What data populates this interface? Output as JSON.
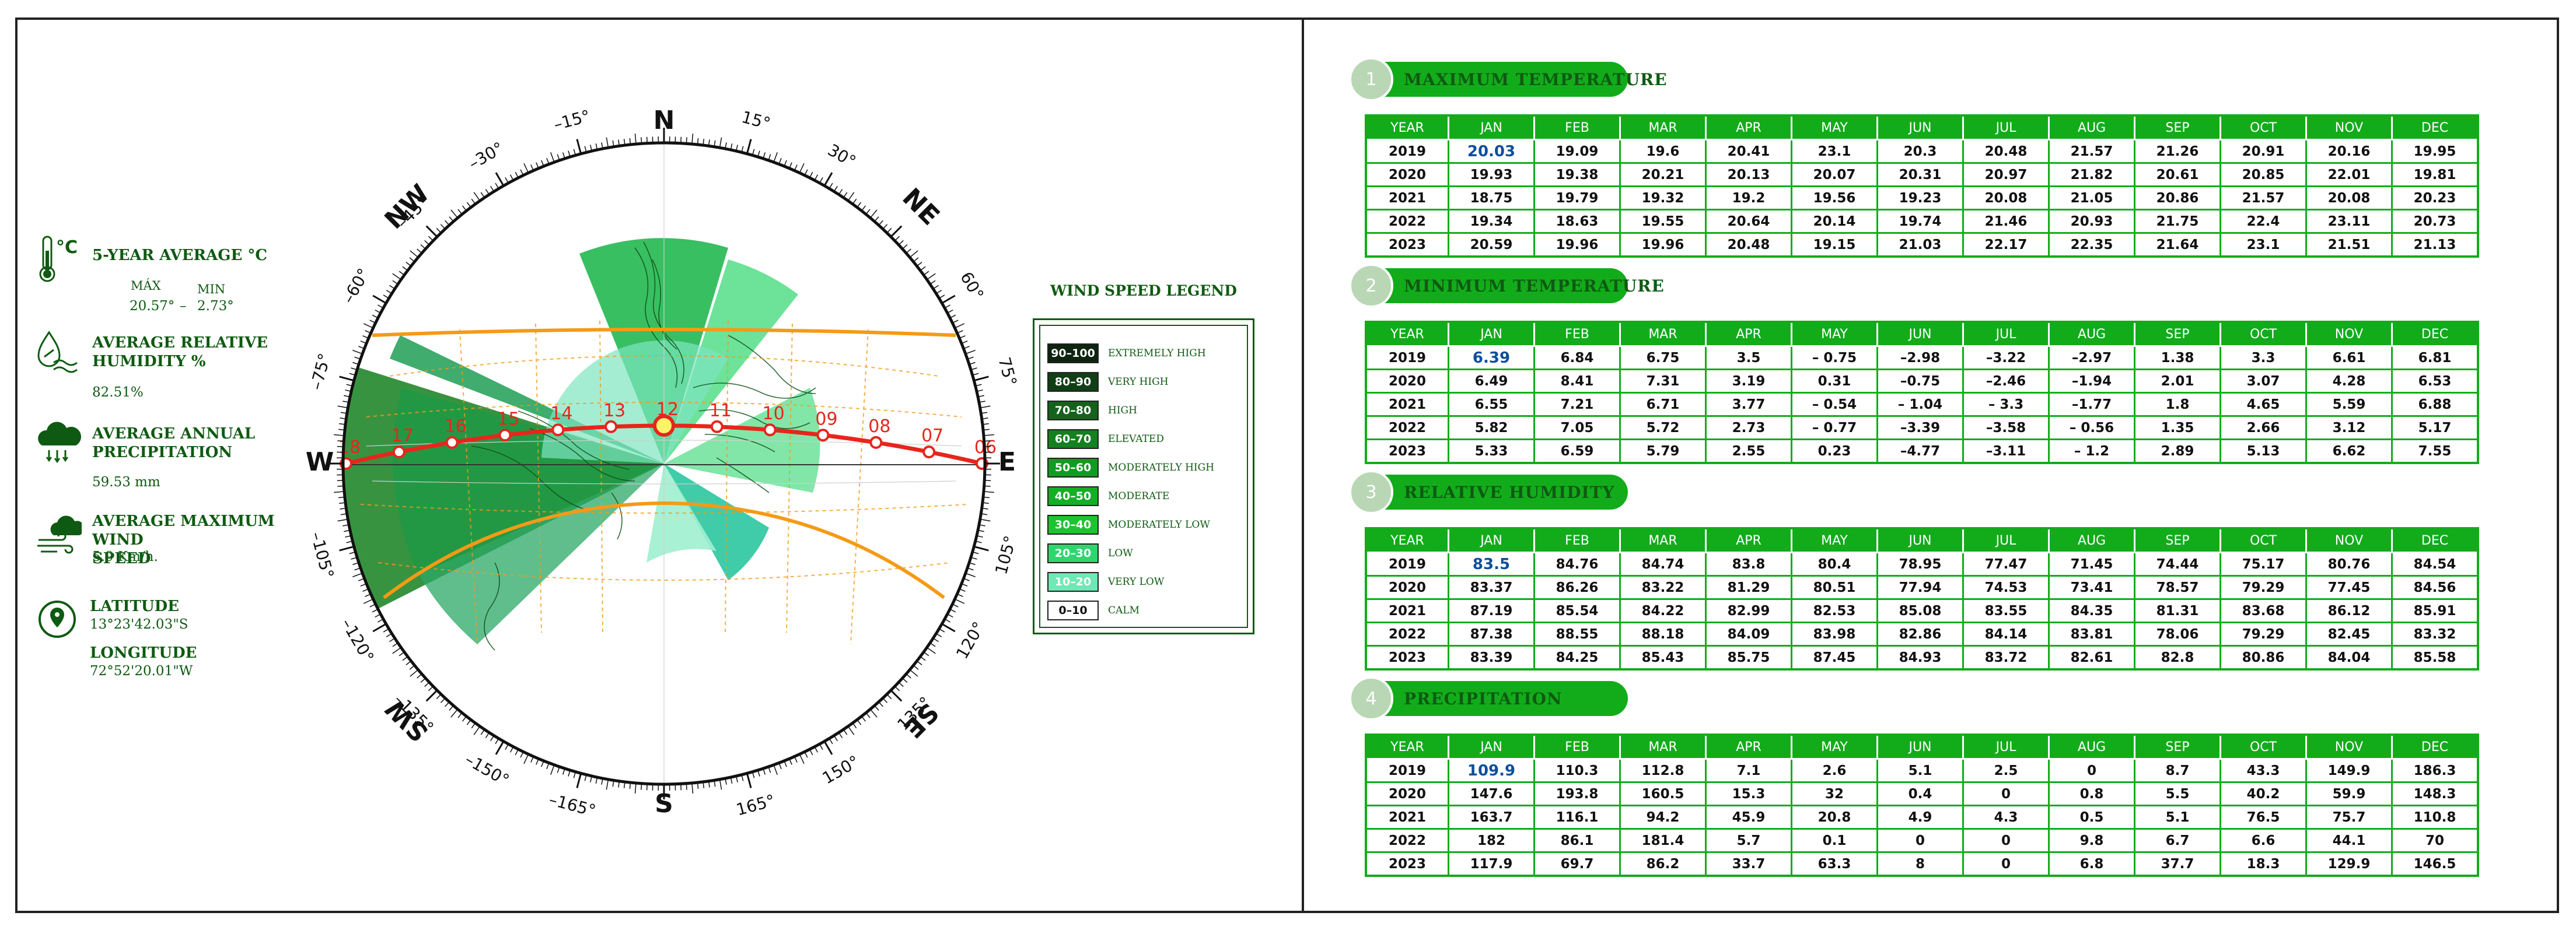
{
  "info": {
    "avg_temp_title": "5-YEAR AVERAGE °C",
    "max_label": "MÁX",
    "min_label": "MIN",
    "max_value": "20.57°",
    "dash": "–",
    "min_value": "2.73°",
    "humidity_title_1": "AVERAGE RELATIVE",
    "humidity_title_2": "HUMIDITY %",
    "humidity_value": "82.51%",
    "precip_title_1": "AVERAGE ANNUAL",
    "precip_title_2": "PRECIPITATION",
    "precip_value": "59.53 mm",
    "wind_title_1": "AVERAGE MAXIMUM WIND",
    "wind_title_2": "SPEED",
    "wind_value": "5.9 Km/h.",
    "lat_label": "LATITUDE",
    "lat_value": "13°23'42.03\"S",
    "lon_label": "LONGITUDE",
    "lon_value": "72°52'20.01\"W"
  },
  "compass": {
    "cardinals": [
      "N",
      "NE",
      "E",
      "SE",
      "S",
      "SW",
      "W",
      "NW"
    ],
    "degree_labels": [
      "15°",
      "30°",
      "60°",
      "75°",
      "105°",
      "120°",
      "135°",
      "150°",
      "165°",
      "–165°",
      "–150°",
      "–135°",
      "–120°",
      "–105°",
      "–75°",
      "–60°",
      "–45°",
      "–30°",
      "–15°"
    ],
    "hour_labels": [
      "18",
      "17",
      "16",
      "15",
      "14",
      "13",
      "12",
      "11",
      "10",
      "09",
      "08",
      "07",
      "06"
    ],
    "colors": {
      "sun_path": "#e8251c",
      "tropic": "#f59a16",
      "hour_text": "#e8251c"
    }
  },
  "legend": {
    "title": "WIND SPEED LEGEND",
    "items": [
      {
        "range": "90–100",
        "label": "EXTREMELY HIGH",
        "color": "#0c2410"
      },
      {
        "range": "80–90",
        "label": "VERY HIGH",
        "color": "#103f15"
      },
      {
        "range": "70–80",
        "label": "HIGH",
        "color": "#15621c"
      },
      {
        "range": "60–70",
        "label": "ELEVATED",
        "color": "#15801f"
      },
      {
        "range": "50–60",
        "label": "MODERATELY HIGH",
        "color": "#129a22"
      },
      {
        "range": "40–50",
        "label": "MODERATE",
        "color": "#14af27"
      },
      {
        "range": "30–40",
        "label": "MODERATELY LOW",
        "color": "#1ec331"
      },
      {
        "range": "20–30",
        "label": "LOW",
        "color": "#2fd66e"
      },
      {
        "range": "10–20",
        "label": "VERY LOW",
        "color": "#6ee8b4"
      },
      {
        "range": "0–10",
        "label": "CALM",
        "color": "#ffffff"
      }
    ]
  },
  "chart_data": [
    {
      "type": "table",
      "number": "1",
      "title": "MAXIMUM TEMPERATURE",
      "columns": [
        "YEAR",
        "JAN",
        "FEB",
        "MAR",
        "APR",
        "MAY",
        "JUN",
        "JUL",
        "AUG",
        "SEP",
        "OCT",
        "NOV",
        "DEC"
      ],
      "rows": [
        [
          "2019",
          "20.03",
          "19.09",
          "19.6",
          "20.41",
          "23.1",
          "20.3",
          "20.48",
          "21.57",
          "21.26",
          "20.91",
          "20.16",
          "19.95"
        ],
        [
          "2020",
          "19.93",
          "19.38",
          "20.21",
          "20.13",
          "20.07",
          "20.31",
          "20.97",
          "21.82",
          "20.61",
          "20.85",
          "22.01",
          "19.81"
        ],
        [
          "2021",
          "18.75",
          "19.79",
          "19.32",
          "19.2",
          "19.56",
          "19.23",
          "20.08",
          "21.05",
          "20.86",
          "21.57",
          "20.08",
          "20.23"
        ],
        [
          "2022",
          "19.34",
          "18.63",
          "19.55",
          "20.64",
          "20.14",
          "19.74",
          "21.46",
          "20.93",
          "21.75",
          "22.4",
          "23.11",
          "20.73"
        ],
        [
          "2023",
          "20.59",
          "19.96",
          "19.96",
          "20.48",
          "19.15",
          "21.03",
          "22.17",
          "22.35",
          "21.64",
          "23.1",
          "21.51",
          "21.13"
        ]
      ]
    },
    {
      "type": "table",
      "number": "2",
      "title": "MINIMUM TEMPERATURE",
      "columns": [
        "YEAR",
        "JAN",
        "FEB",
        "MAR",
        "APR",
        "MAY",
        "JUN",
        "JUL",
        "AUG",
        "SEP",
        "OCT",
        "NOV",
        "DEC"
      ],
      "rows": [
        [
          "2019",
          "6.39",
          "6.84",
          "6.75",
          "3.5",
          "– 0.75",
          "–2.98",
          "–3.22",
          "–2.97",
          "1.38",
          "3.3",
          "6.61",
          "6.81"
        ],
        [
          "2020",
          "6.49",
          "8.41",
          "7.31",
          "3.19",
          "0.31",
          "–0.75",
          "–2.46",
          "–1.94",
          "2.01",
          "3.07",
          "4.28",
          "6.53"
        ],
        [
          "2021",
          "6.55",
          "7.21",
          "6.71",
          "3.77",
          "– 0.54",
          "– 1.04",
          "– 3.3",
          "–1.77",
          "1.8",
          "4.65",
          "5.59",
          "6.88"
        ],
        [
          "2022",
          "5.82",
          "7.05",
          "5.72",
          "2.73",
          "– 0.77",
          "–3.39",
          "–3.58",
          "– 0.56",
          "1.35",
          "2.66",
          "3.12",
          "5.17"
        ],
        [
          "2023",
          "5.33",
          "6.59",
          "5.79",
          "2.55",
          "0.23",
          "–4.77",
          "–3.11",
          "– 1.2",
          "2.89",
          "5.13",
          "6.62",
          "7.55"
        ]
      ]
    },
    {
      "type": "table",
      "number": "3",
      "title": "RELATIVE HUMIDITY",
      "columns": [
        "YEAR",
        "JAN",
        "FEB",
        "MAR",
        "APR",
        "MAY",
        "JUN",
        "JUL",
        "AUG",
        "SEP",
        "OCT",
        "NOV",
        "DEC"
      ],
      "rows": [
        [
          "2019",
          "83.5",
          "84.76",
          "84.74",
          "83.8",
          "80.4",
          "78.95",
          "77.47",
          "71.45",
          "74.44",
          "75.17",
          "80.76",
          "84.54"
        ],
        [
          "2020",
          "83.37",
          "86.26",
          "83.22",
          "81.29",
          "80.51",
          "77.94",
          "74.53",
          "73.41",
          "78.57",
          "79.29",
          "77.45",
          "84.56"
        ],
        [
          "2021",
          "87.19",
          "85.54",
          "84.22",
          "82.99",
          "82.53",
          "85.08",
          "83.55",
          "84.35",
          "81.31",
          "83.68",
          "86.12",
          "85.91"
        ],
        [
          "2022",
          "87.38",
          "88.55",
          "88.18",
          "84.09",
          "83.98",
          "82.86",
          "84.14",
          "83.81",
          "78.06",
          "79.29",
          "82.45",
          "83.32"
        ],
        [
          "2023",
          "83.39",
          "84.25",
          "85.43",
          "85.75",
          "87.45",
          "84.93",
          "83.72",
          "82.61",
          "82.8",
          "80.86",
          "84.04",
          "85.58"
        ]
      ]
    },
    {
      "type": "table",
      "number": "4",
      "title": "PRECIPITATION",
      "columns": [
        "YEAR",
        "JAN",
        "FEB",
        "MAR",
        "APR",
        "MAY",
        "JUN",
        "JUL",
        "AUG",
        "SEP",
        "OCT",
        "NOV",
        "DEC"
      ],
      "rows": [
        [
          "2019",
          "109.9",
          "110.3",
          "112.8",
          "7.1",
          "2.6",
          "5.1",
          "2.5",
          "0",
          "8.7",
          "43.3",
          "149.9",
          "186.3"
        ],
        [
          "2020",
          "147.6",
          "193.8",
          "160.5",
          "15.3",
          "32",
          "0.4",
          "0",
          "0.8",
          "5.5",
          "40.2",
          "59.9",
          "148.3"
        ],
        [
          "2021",
          "163.7",
          "116.1",
          "94.2",
          "45.9",
          "20.8",
          "4.9",
          "4.3",
          "0.5",
          "5.1",
          "76.5",
          "75.7",
          "110.8"
        ],
        [
          "2022",
          "182",
          "86.1",
          "181.4",
          "5.7",
          "0.1",
          "0",
          "0",
          "9.8",
          "6.7",
          "6.6",
          "44.1",
          "70"
        ],
        [
          "2023",
          "117.9",
          "69.7",
          "86.2",
          "33.7",
          "63.3",
          "8",
          "0",
          "6.8",
          "37.7",
          "18.3",
          "129.9",
          "146.5"
        ]
      ]
    }
  ]
}
